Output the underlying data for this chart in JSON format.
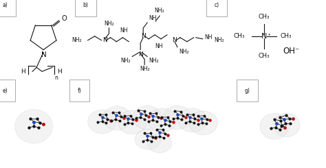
{
  "bg_color": "#ffffff",
  "border_color": "#888888",
  "label_a": "a)",
  "label_b": "b)",
  "label_c": "c)",
  "label_e": "e)",
  "label_f": "f)",
  "label_g": "g)",
  "atom_dark": "#111111",
  "atom_blue": "#2244bb",
  "atom_red": "#bb1111",
  "surface_color": "#e8e8e8",
  "surface_alpha": 0.5,
  "font_size": 6.5,
  "lw": 0.8
}
